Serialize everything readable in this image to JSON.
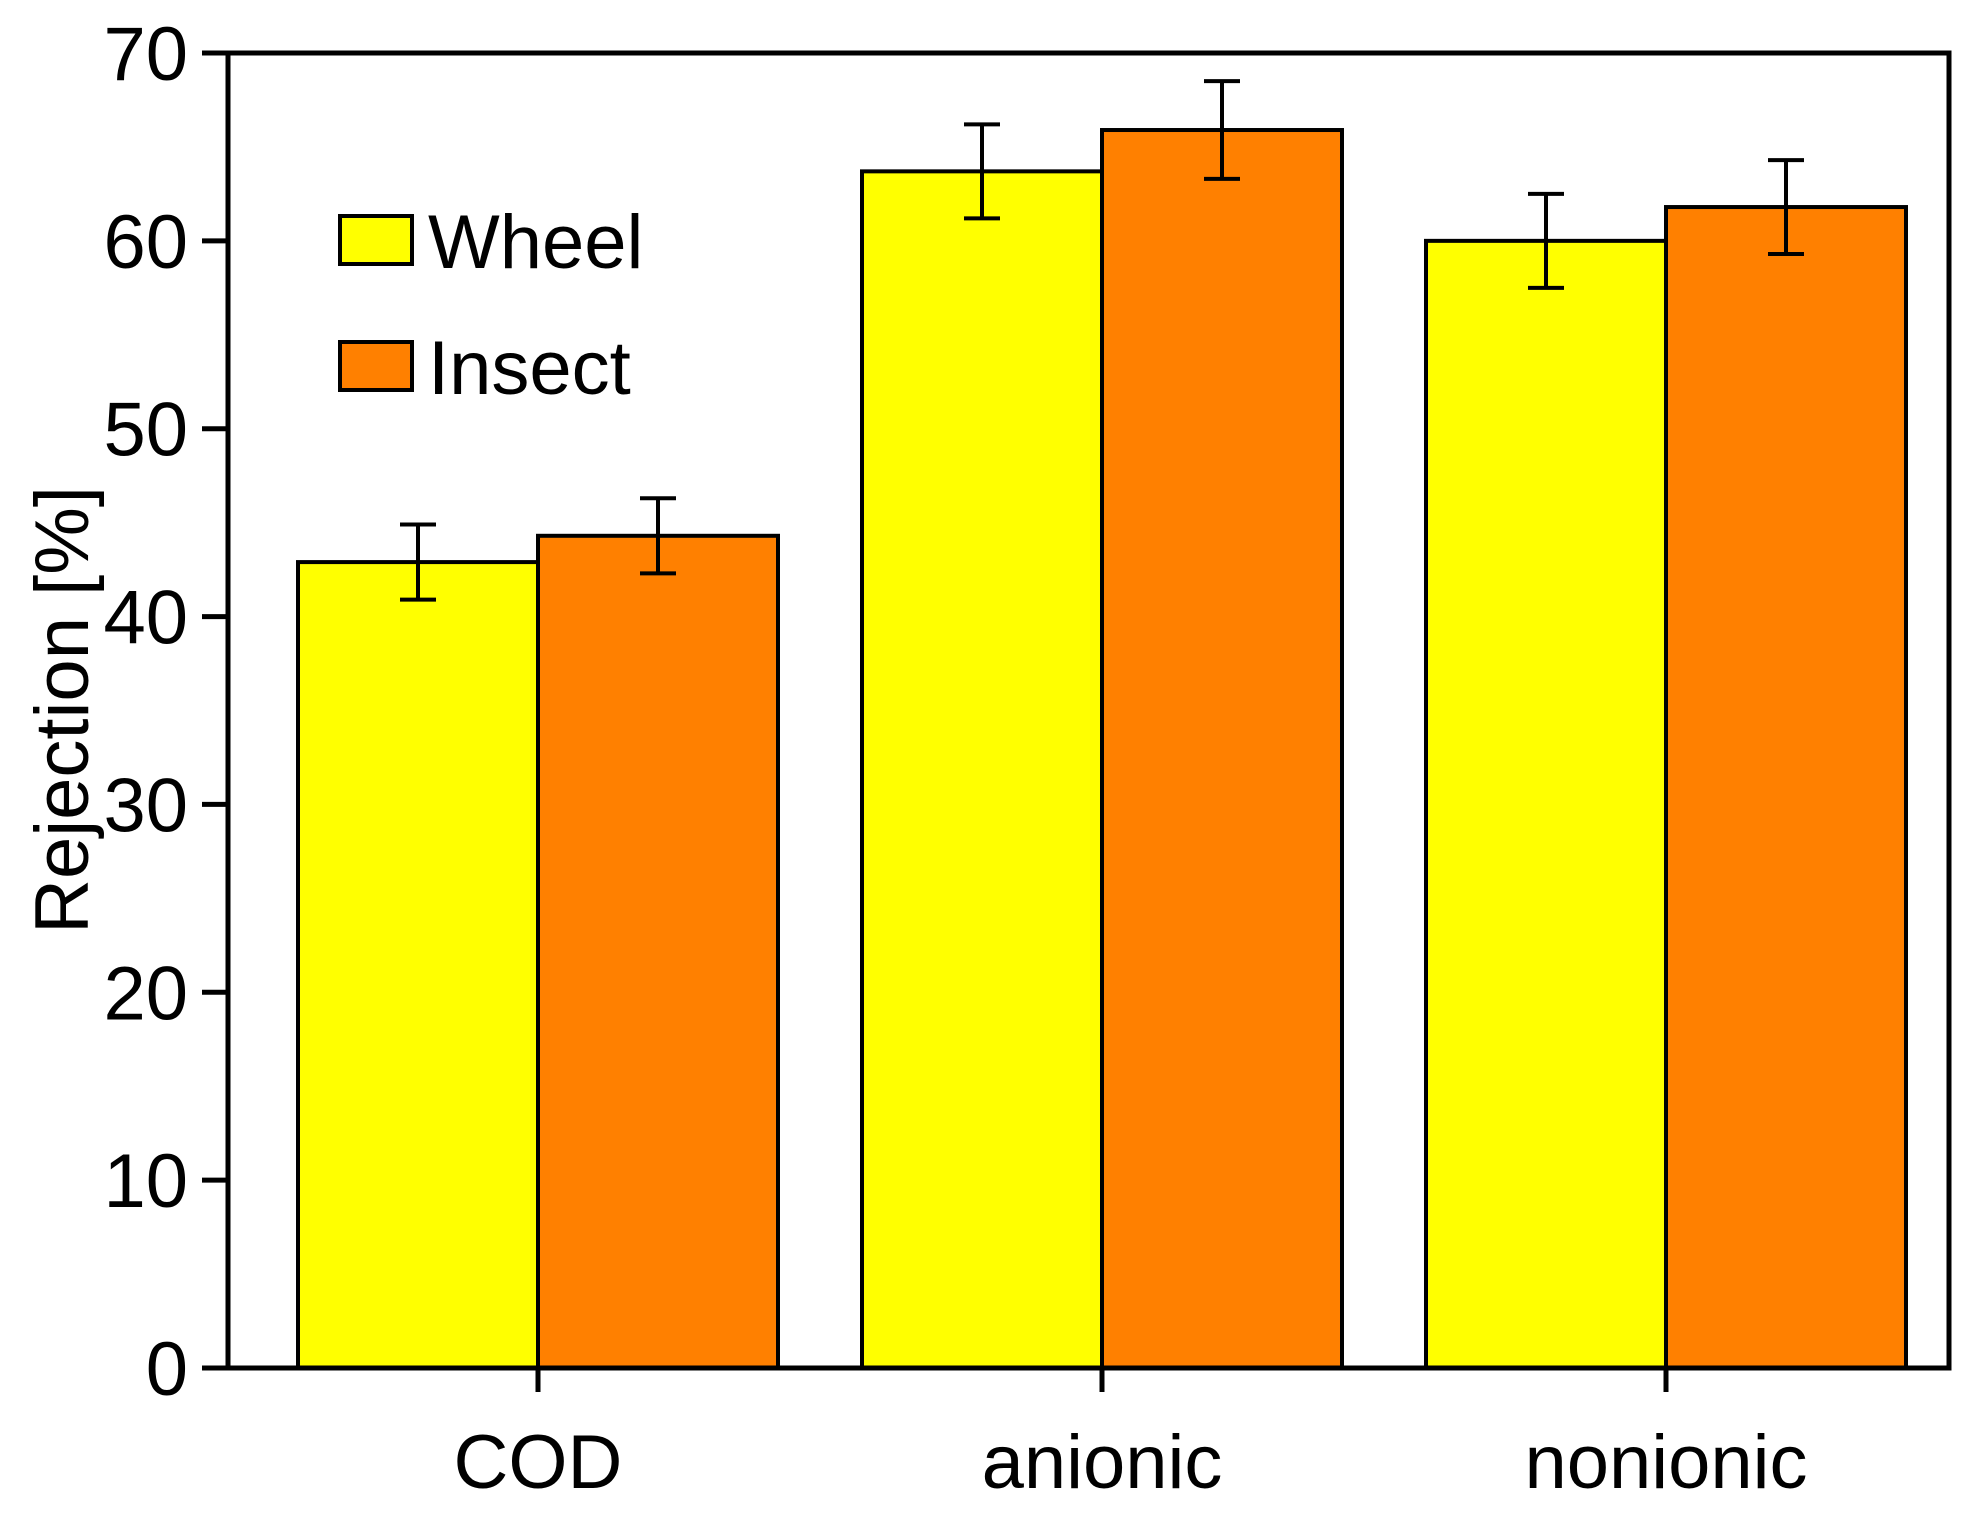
{
  "chart_data": {
    "type": "bar",
    "ylabel": "Rejection [%]",
    "xlabel": "",
    "ylim": [
      0,
      70
    ],
    "yticks": [
      "0",
      "10",
      "20",
      "30",
      "40",
      "50",
      "60",
      "70"
    ],
    "categories": [
      "COD",
      "anionic",
      "nonionic"
    ],
    "grid": false,
    "legend_position": "top-left",
    "series": [
      {
        "name": "Wheel",
        "color": "#FFFF00",
        "values": [
          42.9,
          63.7,
          60.0
        ],
        "errors": [
          2.0,
          2.5,
          2.5
        ]
      },
      {
        "name": "Insect",
        "color": "#FF8000",
        "values": [
          44.3,
          65.9,
          61.8
        ],
        "errors": [
          2.0,
          2.6,
          2.5
        ]
      }
    ]
  }
}
